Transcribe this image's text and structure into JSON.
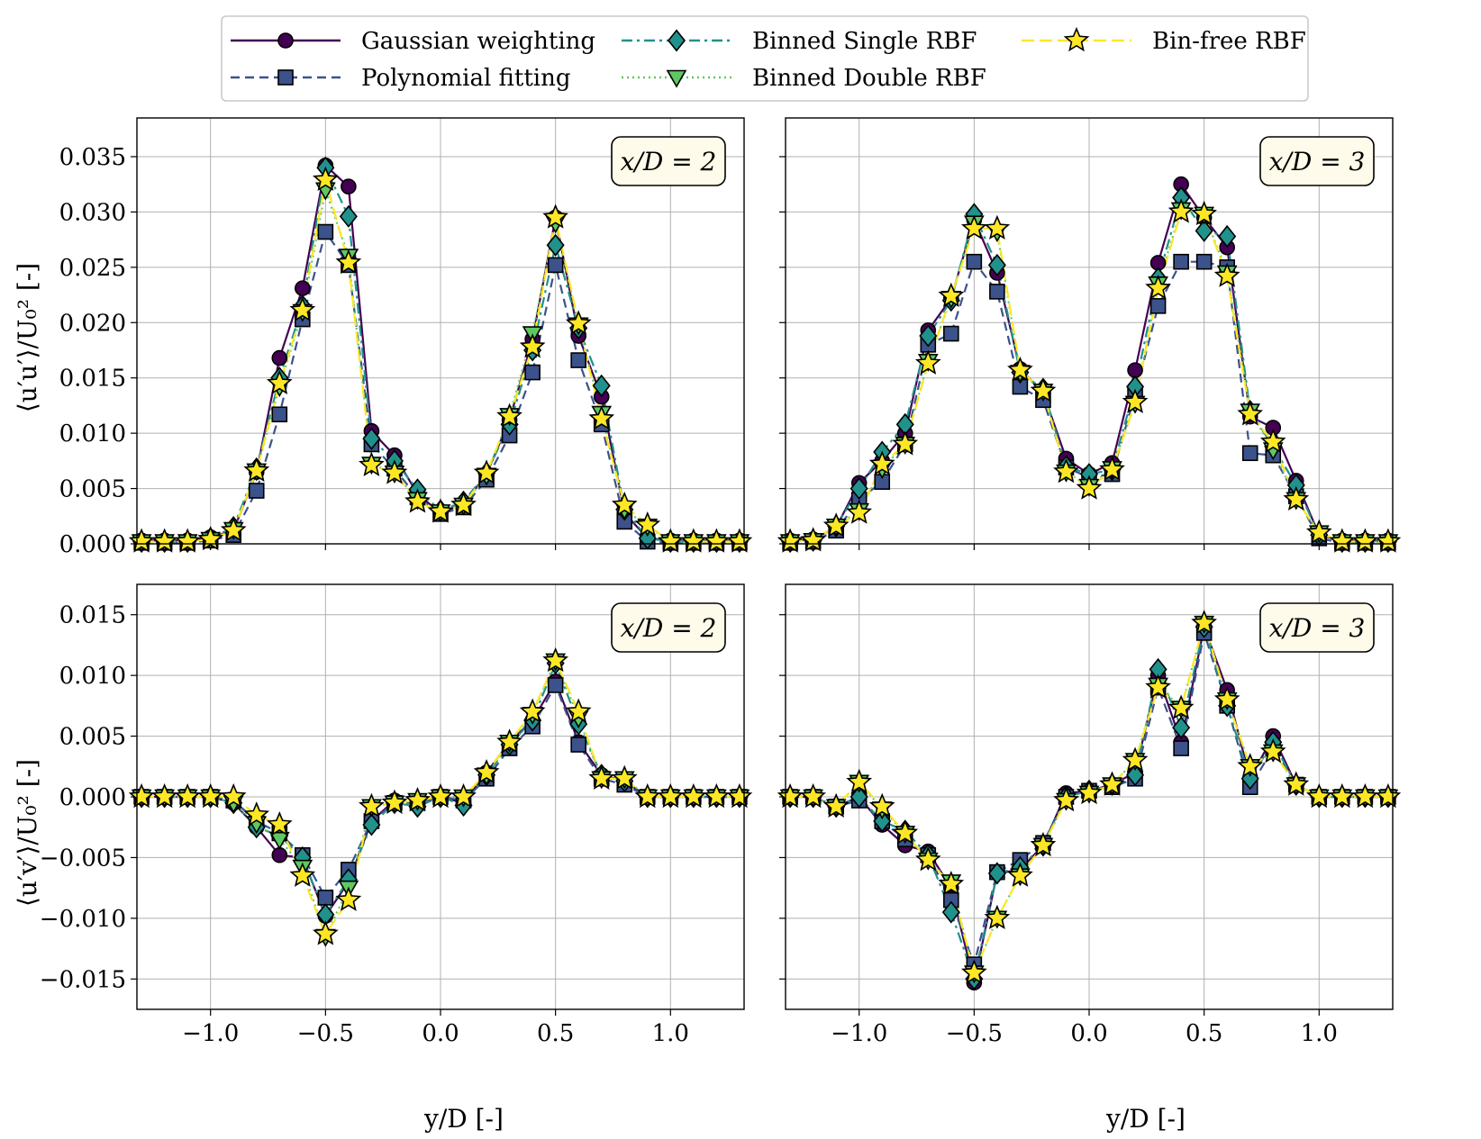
{
  "legend": [
    {
      "label": "Gaussian weighting",
      "color": "#440154",
      "dash": "",
      "marker": "circle"
    },
    {
      "label": "Polynomial fitting",
      "color": "#3b528b",
      "dash": "10 6",
      "marker": "square"
    },
    {
      "label": "Binned Single RBF",
      "color": "#21918c",
      "dash": "12 5 3 5",
      "marker": "diamond"
    },
    {
      "label": "Binned Double RBF",
      "color": "#5ec962",
      "dash": "2 4",
      "marker": "triangle"
    },
    {
      "label": "Bin-free RBF",
      "color": "#fde725",
      "dash": "14 6",
      "marker": "star"
    }
  ],
  "x_axis_label": "y/D [-]",
  "row_labels": [
    "⟨u′u′⟩/U₀² [-]",
    "⟨u′v′⟩/U₀² [-]"
  ],
  "x_ticks": [
    -1.0,
    -0.5,
    0.0,
    0.5,
    1.0
  ],
  "x_tick_labels": [
    "−1.0",
    "−0.5",
    "0.0",
    "0.5",
    "1.0"
  ],
  "chart_data": [
    {
      "type": "line",
      "panel": "top-left",
      "badge": "x/D = 2",
      "xlabel": "",
      "ylabel": "⟨u′u′⟩/U₀² [-]",
      "xlim": [
        -1.32,
        1.32
      ],
      "ylim": [
        0.0,
        0.0385
      ],
      "y_ticks": [
        0.0,
        0.005,
        0.01,
        0.015,
        0.02,
        0.025,
        0.03,
        0.035
      ],
      "y_tick_labels": [
        "0.000",
        "0.005",
        "0.010",
        "0.015",
        "0.020",
        "0.025",
        "0.030",
        "0.035"
      ],
      "grid": true,
      "x": [
        -1.3,
        -1.2,
        -1.1,
        -1.0,
        -0.9,
        -0.8,
        -0.7,
        -0.6,
        -0.5,
        -0.4,
        -0.3,
        -0.2,
        -0.1,
        0.0,
        0.1,
        0.2,
        0.3,
        0.4,
        0.5,
        0.6,
        0.7,
        0.8,
        0.9,
        1.0,
        1.1,
        1.2,
        1.3
      ],
      "series": [
        {
          "name": "Gaussian weighting",
          "values": [
            0.0003,
            0.0003,
            0.0003,
            0.0006,
            0.0012,
            0.0065,
            0.0168,
            0.0231,
            0.0342,
            0.0323,
            0.0102,
            0.008,
            0.0045,
            0.0028,
            0.0036,
            0.0063,
            0.0112,
            0.0185,
            0.0295,
            0.0188,
            0.0133,
            0.0028,
            0.0005,
            0.0003,
            0.0003,
            0.0003,
            0.0003
          ]
        },
        {
          "name": "Polynomial fitting",
          "values": [
            0.0001,
            0.0001,
            0.0001,
            0.0003,
            0.0008,
            0.0048,
            0.0117,
            0.0203,
            0.0282,
            0.0252,
            0.009,
            0.0068,
            0.0042,
            0.0027,
            0.0033,
            0.0058,
            0.0098,
            0.0155,
            0.0252,
            0.0166,
            0.0108,
            0.002,
            0.0002,
            0.0001,
            0.0001,
            0.0001,
            0.0001
          ]
        },
        {
          "name": "Binned Single RBF",
          "values": [
            0.0002,
            0.0002,
            0.0002,
            0.0005,
            0.0015,
            0.0068,
            0.015,
            0.0215,
            0.034,
            0.0296,
            0.0095,
            0.0075,
            0.0049,
            0.003,
            0.0038,
            0.0064,
            0.0108,
            0.0175,
            0.027,
            0.0195,
            0.0143,
            0.0031,
            0.0005,
            0.0002,
            0.0002,
            0.0002,
            0.0002
          ]
        },
        {
          "name": "Binned Double RBF",
          "values": [
            0.0002,
            0.0002,
            0.0002,
            0.0004,
            0.0013,
            0.0066,
            0.0142,
            0.021,
            0.032,
            0.026,
            0.0072,
            0.0064,
            0.004,
            0.0029,
            0.0035,
            0.0062,
            0.0116,
            0.019,
            0.029,
            0.0198,
            0.0118,
            0.0031,
            0.0016,
            0.0002,
            0.0002,
            0.0002,
            0.0002
          ]
        },
        {
          "name": "Bin-free RBF",
          "values": [
            0.0002,
            0.0002,
            0.0002,
            0.0004,
            0.0012,
            0.0066,
            0.0145,
            0.0211,
            0.0329,
            0.0254,
            0.0071,
            0.0064,
            0.0038,
            0.0029,
            0.0035,
            0.0064,
            0.0115,
            0.0178,
            0.0295,
            0.0199,
            0.0113,
            0.0035,
            0.0017,
            0.0002,
            0.0002,
            0.0002,
            0.0002
          ]
        }
      ]
    },
    {
      "type": "line",
      "panel": "top-right",
      "badge": "x/D = 3",
      "xlabel": "",
      "ylabel": "",
      "xlim": [
        -1.32,
        1.32
      ],
      "ylim": [
        0.0,
        0.0385
      ],
      "y_ticks": [
        0.0,
        0.005,
        0.01,
        0.015,
        0.02,
        0.025,
        0.03,
        0.035
      ],
      "grid": true,
      "x": [
        -1.3,
        -1.2,
        -1.1,
        -1.0,
        -0.9,
        -0.8,
        -0.7,
        -0.6,
        -0.5,
        -0.4,
        -0.3,
        -0.2,
        -0.1,
        0.0,
        0.1,
        0.2,
        0.3,
        0.4,
        0.5,
        0.6,
        0.7,
        0.8,
        0.9,
        1.0,
        1.1,
        1.2,
        1.3
      ],
      "series": [
        {
          "name": "Gaussian weighting",
          "values": [
            0.0003,
            0.0004,
            0.0015,
            0.0055,
            0.0075,
            0.01,
            0.0193,
            0.0222,
            0.0293,
            0.0245,
            0.0158,
            0.0137,
            0.0077,
            0.0063,
            0.0073,
            0.0157,
            0.0254,
            0.0325,
            0.0295,
            0.0268,
            0.0115,
            0.0105,
            0.0057,
            0.0008,
            0.0003,
            0.0003,
            0.0003
          ]
        },
        {
          "name": "Polynomial fitting",
          "values": [
            0.0001,
            0.0002,
            0.0012,
            0.004,
            0.0056,
            0.009,
            0.018,
            0.019,
            0.0255,
            0.0228,
            0.0142,
            0.013,
            0.0069,
            0.006,
            0.0063,
            0.0135,
            0.0215,
            0.0255,
            0.0255,
            0.025,
            0.0082,
            0.008,
            0.0043,
            0.0005,
            0.0001,
            0.0001,
            0.0001
          ]
        },
        {
          "name": "Binned Single RBF",
          "values": [
            0.0002,
            0.0003,
            0.0016,
            0.005,
            0.0083,
            0.0108,
            0.0188,
            0.022,
            0.0298,
            0.0252,
            0.0155,
            0.014,
            0.007,
            0.0063,
            0.0067,
            0.0142,
            0.024,
            0.0313,
            0.0283,
            0.0278,
            0.012,
            0.0088,
            0.0053,
            0.0008,
            0.0002,
            0.0002,
            0.0002
          ]
        },
        {
          "name": "Binned Double RBF",
          "values": [
            0.0002,
            0.0003,
            0.0016,
            0.003,
            0.0068,
            0.009,
            0.0165,
            0.0222,
            0.029,
            0.0282,
            0.0155,
            0.0138,
            0.0065,
            0.0052,
            0.0068,
            0.0127,
            0.0235,
            0.0302,
            0.0298,
            0.0245,
            0.012,
            0.0085,
            0.004,
            0.001,
            0.0002,
            0.0002,
            0.0002
          ]
        },
        {
          "name": "Bin-free RBF",
          "values": [
            0.0002,
            0.0003,
            0.0016,
            0.0028,
            0.0072,
            0.009,
            0.0163,
            0.0224,
            0.0285,
            0.0285,
            0.0157,
            0.0138,
            0.0065,
            0.005,
            0.0067,
            0.0128,
            0.0231,
            0.03,
            0.0298,
            0.0242,
            0.0117,
            0.0092,
            0.004,
            0.001,
            0.0002,
            0.0002,
            0.0002
          ]
        }
      ]
    },
    {
      "type": "line",
      "panel": "bottom-left",
      "badge": "x/D = 2",
      "xlabel": "y/D [-]",
      "ylabel": "⟨u′v′⟩/U₀² [-]",
      "xlim": [
        -1.32,
        1.32
      ],
      "ylim": [
        -0.0175,
        0.0175
      ],
      "y_ticks": [
        -0.015,
        -0.01,
        -0.005,
        0.0,
        0.005,
        0.01,
        0.015
      ],
      "y_tick_labels": [
        "−0.015",
        "−0.010",
        "−0.005",
        "0.000",
        "0.005",
        "0.010",
        "0.015"
      ],
      "grid": true,
      "x": [
        -1.3,
        -1.2,
        -1.1,
        -1.0,
        -0.9,
        -0.8,
        -0.7,
        -0.6,
        -0.5,
        -0.4,
        -0.3,
        -0.2,
        -0.1,
        0.0,
        0.1,
        0.2,
        0.3,
        0.4,
        0.5,
        0.6,
        0.7,
        0.8,
        0.9,
        1.0,
        1.1,
        1.2,
        1.3
      ],
      "series": [
        {
          "name": "Gaussian weighting",
          "values": [
            0.0,
            0.0,
            0.0,
            0.0,
            -0.0005,
            -0.0025,
            -0.0048,
            -0.005,
            -0.0098,
            -0.007,
            -0.002,
            -0.0003,
            -0.0005,
            0.0,
            -0.0005,
            0.002,
            0.0045,
            0.0063,
            0.0095,
            0.0045,
            0.0018,
            0.0013,
            0.0,
            0.0,
            0.0,
            0.0,
            0.0
          ]
        },
        {
          "name": "Polynomial fitting",
          "values": [
            0.0,
            0.0,
            0.0,
            0.0,
            -0.0003,
            -0.002,
            -0.003,
            -0.0048,
            -0.0083,
            -0.006,
            -0.002,
            -0.0005,
            -0.0005,
            0.0,
            -0.0003,
            0.0015,
            0.004,
            0.0058,
            0.0092,
            0.0043,
            0.0015,
            0.001,
            0.0,
            0.0,
            0.0,
            0.0,
            0.0
          ]
        },
        {
          "name": "Binned Single RBF",
          "values": [
            0.0,
            0.0,
            0.0,
            0.0,
            -0.0005,
            -0.0025,
            -0.0032,
            -0.005,
            -0.0097,
            -0.0068,
            -0.0023,
            -0.0005,
            -0.0008,
            0.0,
            -0.0007,
            0.0018,
            0.0043,
            0.0063,
            0.011,
            0.006,
            0.0018,
            0.0013,
            0.0,
            0.0,
            0.0,
            0.0,
            0.0
          ]
        },
        {
          "name": "Binned Double RBF",
          "values": [
            0.0,
            0.0,
            0.0,
            0.0,
            -0.0005,
            -0.0022,
            -0.0035,
            -0.0058,
            -0.0115,
            -0.0075,
            -0.0008,
            -0.0005,
            -0.0003,
            0.0,
            0.0,
            0.0018,
            0.0045,
            0.0068,
            0.0112,
            0.0065,
            0.0015,
            0.0015,
            0.0,
            0.0,
            0.0,
            0.0,
            0.0
          ]
        },
        {
          "name": "Bin-free RBF",
          "values": [
            0.0,
            0.0,
            0.0,
            0.0,
            0.0,
            -0.0015,
            -0.0023,
            -0.0065,
            -0.0113,
            -0.0085,
            -0.0008,
            -0.0005,
            -0.0003,
            0.0,
            0.0,
            0.002,
            0.0045,
            0.007,
            0.0112,
            0.007,
            0.0015,
            0.0015,
            0.0,
            0.0,
            0.0,
            0.0,
            0.0
          ]
        }
      ]
    },
    {
      "type": "line",
      "panel": "bottom-right",
      "badge": "x/D = 3",
      "xlabel": "y/D [-]",
      "ylabel": "",
      "xlim": [
        -1.32,
        1.32
      ],
      "ylim": [
        -0.0175,
        0.0175
      ],
      "y_ticks": [
        -0.015,
        -0.01,
        -0.005,
        0.0,
        0.005,
        0.01,
        0.015
      ],
      "grid": true,
      "x": [
        -1.3,
        -1.2,
        -1.1,
        -1.0,
        -0.9,
        -0.8,
        -0.7,
        -0.6,
        -0.5,
        -0.4,
        -0.3,
        -0.2,
        -0.1,
        0.0,
        0.1,
        0.2,
        0.3,
        0.4,
        0.5,
        0.6,
        0.7,
        0.8,
        0.9,
        1.0,
        1.1,
        1.2,
        1.3
      ],
      "series": [
        {
          "name": "Gaussian weighting",
          "values": [
            0.0,
            0.0,
            -0.0008,
            0.0,
            -0.0023,
            -0.004,
            -0.0045,
            -0.0075,
            -0.0153,
            -0.0063,
            -0.006,
            -0.004,
            0.0003,
            0.0005,
            0.001,
            0.002,
            0.01,
            0.0045,
            0.014,
            0.0088,
            0.0015,
            0.005,
            0.001,
            0.0,
            0.0,
            0.0,
            0.0
          ]
        },
        {
          "name": "Polynomial fitting",
          "values": [
            0.0,
            0.0,
            -0.0008,
            -0.0003,
            -0.002,
            -0.0035,
            -0.0048,
            -0.0085,
            -0.0138,
            -0.0062,
            -0.0052,
            -0.0038,
            0.0,
            0.0005,
            0.0008,
            0.0015,
            0.009,
            0.004,
            0.0135,
            0.0075,
            0.0008,
            0.004,
            0.001,
            0.0,
            0.0,
            0.0,
            0.0
          ]
        },
        {
          "name": "Binned Single RBF",
          "values": [
            0.0,
            0.0,
            -0.0008,
            0.0,
            -0.002,
            -0.0028,
            -0.0048,
            -0.0095,
            -0.015,
            -0.0063,
            -0.0058,
            -0.004,
            0.0,
            0.0005,
            0.001,
            0.0018,
            0.0105,
            0.0057,
            0.014,
            0.0075,
            0.0015,
            0.0045,
            0.001,
            0.0,
            0.0,
            0.0,
            0.0
          ]
        },
        {
          "name": "Binned Double RBF",
          "values": [
            0.0,
            0.0,
            -0.0008,
            0.0012,
            -0.001,
            -0.003,
            -0.0052,
            -0.007,
            -0.0145,
            -0.01,
            -0.0065,
            -0.004,
            -0.0003,
            0.0003,
            0.001,
            0.003,
            0.0092,
            0.0073,
            0.0143,
            0.008,
            0.0025,
            0.0037,
            0.001,
            0.0,
            0.0,
            0.0,
            0.0
          ]
        },
        {
          "name": "Bin-free RBF",
          "values": [
            0.0,
            0.0,
            -0.0008,
            0.0012,
            -0.0008,
            -0.003,
            -0.0052,
            -0.0072,
            -0.0145,
            -0.01,
            -0.0065,
            -0.004,
            -0.0003,
            0.0003,
            0.001,
            0.003,
            0.009,
            0.0073,
            0.0143,
            0.008,
            0.0025,
            0.0037,
            0.001,
            0.0,
            0.0,
            0.0,
            0.0
          ]
        }
      ]
    }
  ]
}
